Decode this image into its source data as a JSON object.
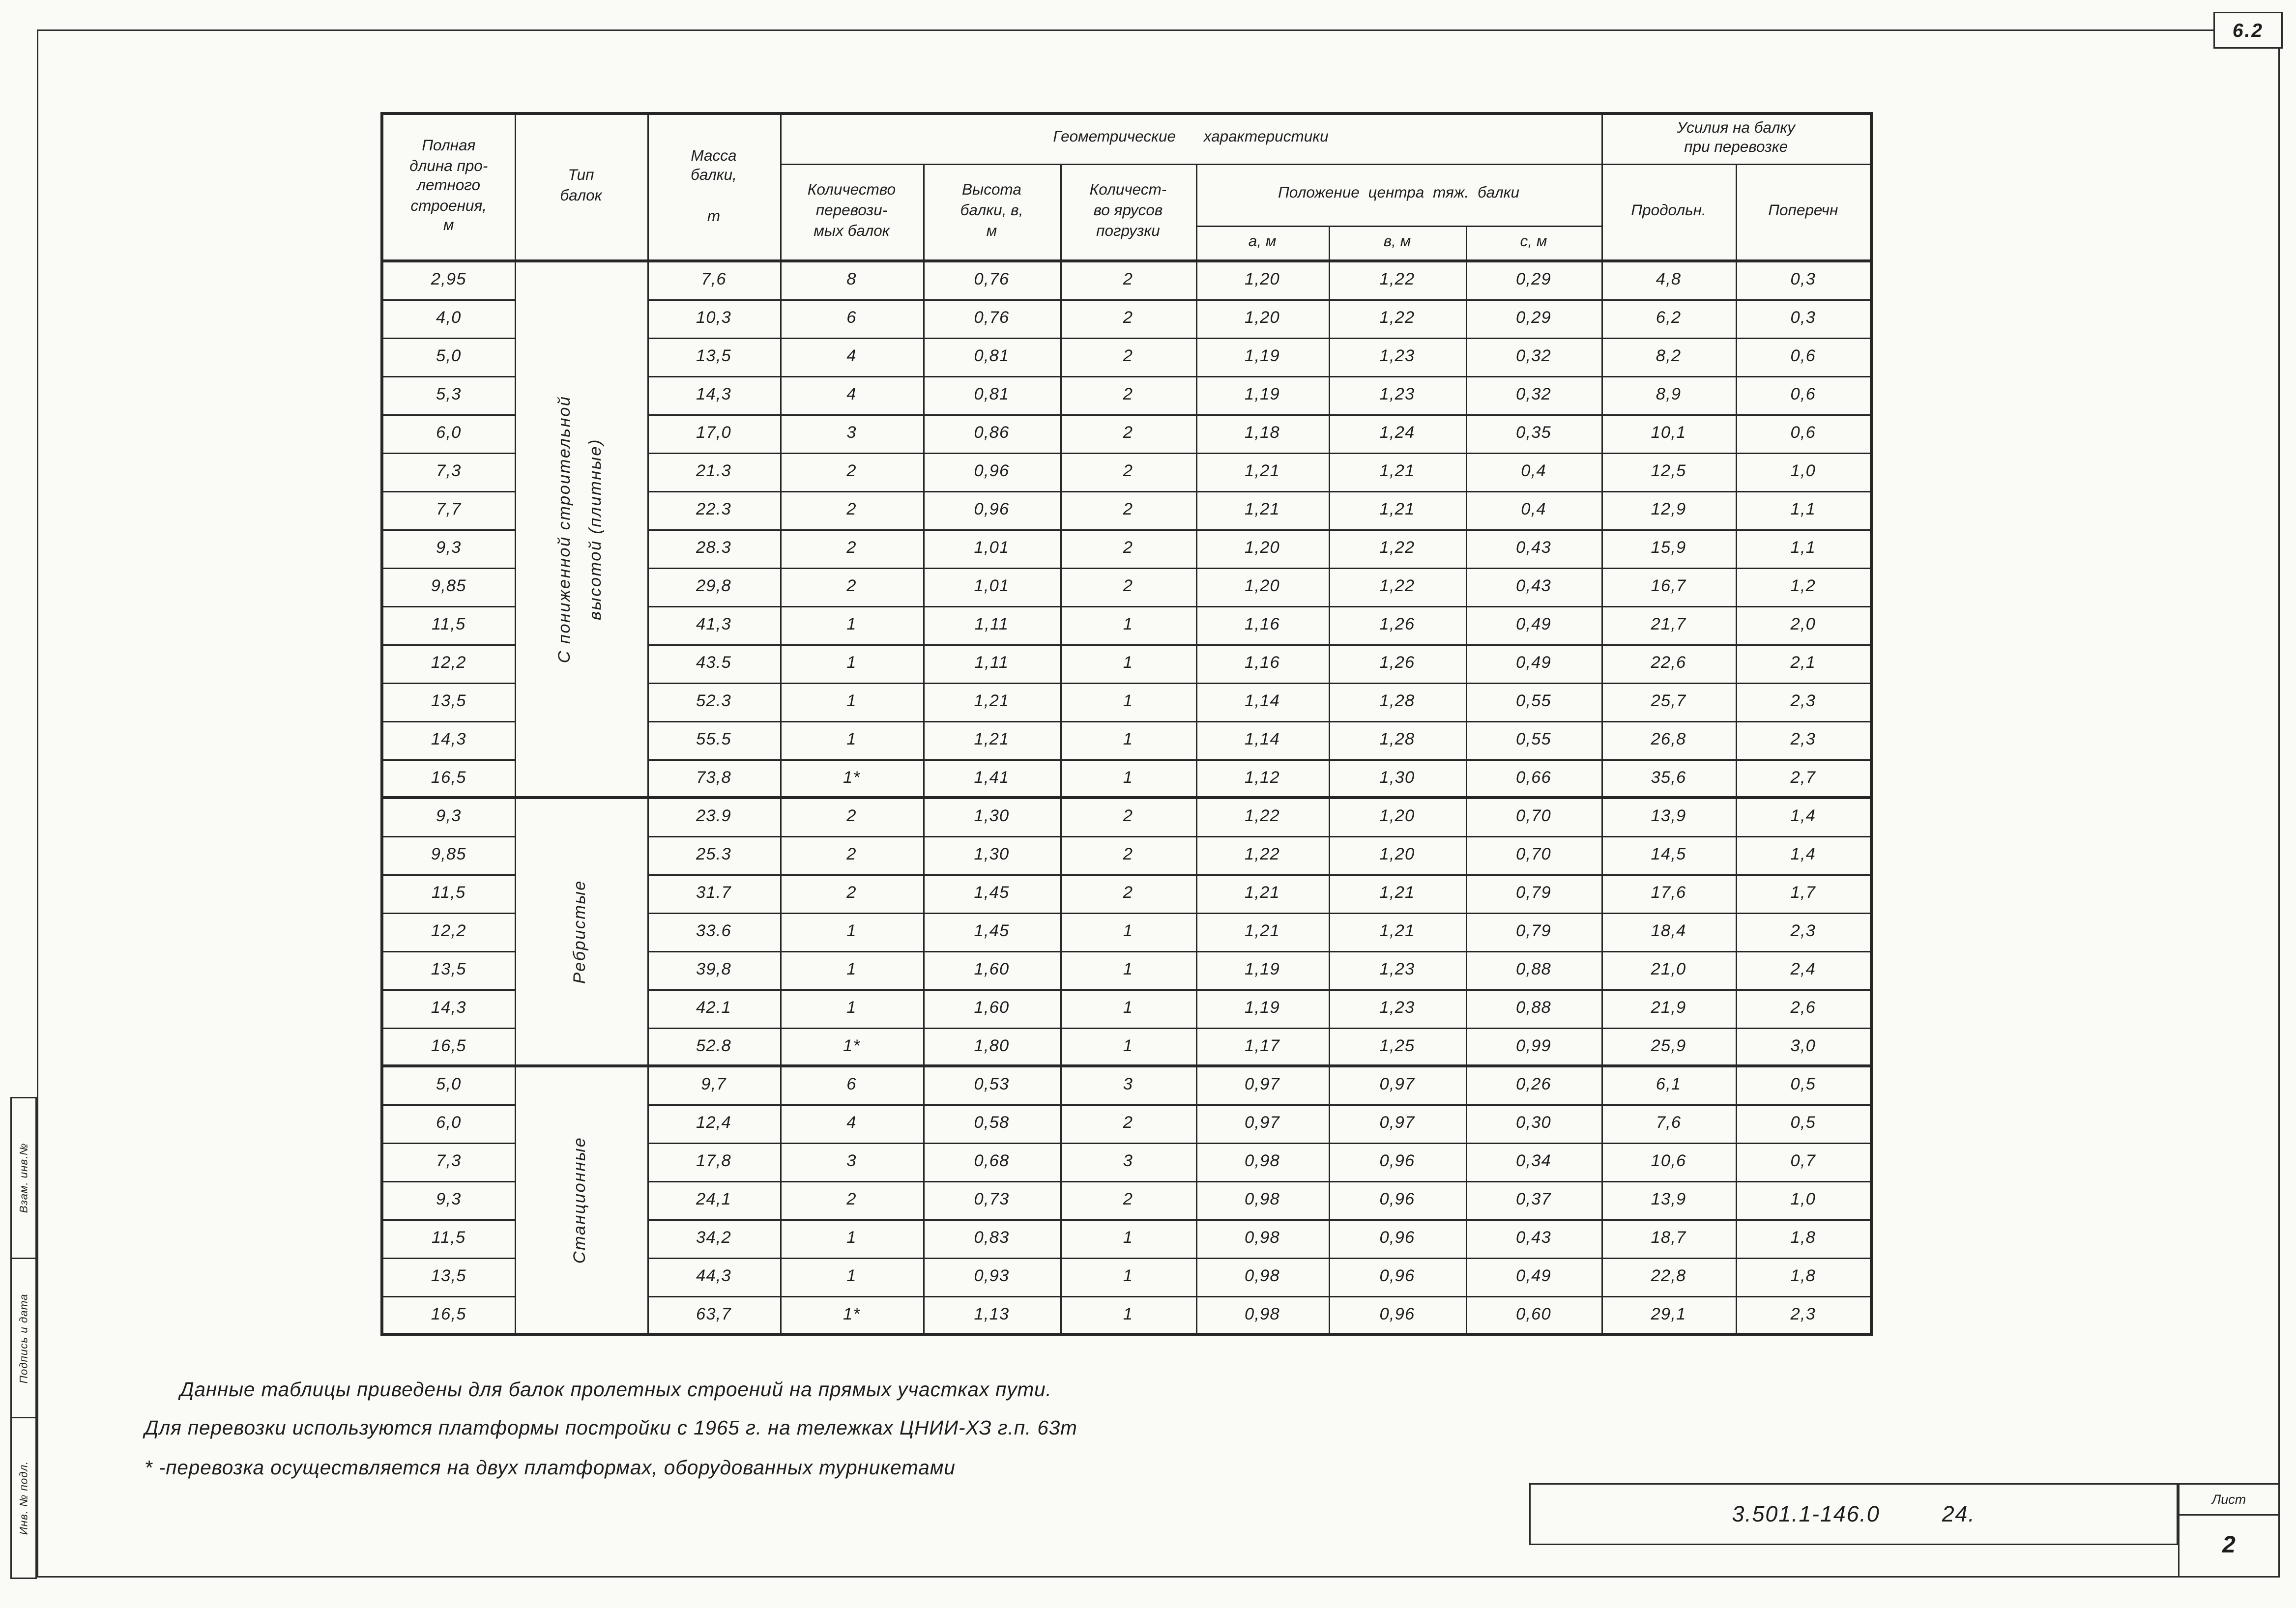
{
  "page": {
    "corner_label": "6.2"
  },
  "table": {
    "headers": {
      "full_length": "Полная\nдлина про-\nлетного\nстроения,\nм",
      "beam_type": "Тип\nбалок",
      "mass": "Масса\nбалки,\n\nт",
      "geometric": "Геометрические характеристики",
      "count": "Количество\nперевози-\nмых балок",
      "height": "Высота\nбалки, в,\nм",
      "tiers": "Количест-\nво ярусов\nпогрузки",
      "center": "Положение центра тяж. балки",
      "a": "а, м",
      "v": "в, м",
      "c": "с, м",
      "forces": "Усилия на балку\nпри перевозке",
      "longitudinal": "Продольн.",
      "transverse": "Поперечн"
    },
    "groups": [
      {
        "type": "С пониженной строительной\nвысотой (плитные)",
        "rows": [
          [
            "2,95",
            "7,6",
            "8",
            "0,76",
            "2",
            "1,20",
            "1,22",
            "0,29",
            "4,8",
            "0,3"
          ],
          [
            "4,0",
            "10,3",
            "6",
            "0,76",
            "2",
            "1,20",
            "1,22",
            "0,29",
            "6,2",
            "0,3"
          ],
          [
            "5,0",
            "13,5",
            "4",
            "0,81",
            "2",
            "1,19",
            "1,23",
            "0,32",
            "8,2",
            "0,6"
          ],
          [
            "5,3",
            "14,3",
            "4",
            "0,81",
            "2",
            "1,19",
            "1,23",
            "0,32",
            "8,9",
            "0,6"
          ],
          [
            "6,0",
            "17,0",
            "3",
            "0,86",
            "2",
            "1,18",
            "1,24",
            "0,35",
            "10,1",
            "0,6"
          ],
          [
            "7,3",
            "21.3",
            "2",
            "0,96",
            "2",
            "1,21",
            "1,21",
            "0,4",
            "12,5",
            "1,0"
          ],
          [
            "7,7",
            "22.3",
            "2",
            "0,96",
            "2",
            "1,21",
            "1,21",
            "0,4",
            "12,9",
            "1,1"
          ],
          [
            "9,3",
            "28.3",
            "2",
            "1,01",
            "2",
            "1,20",
            "1,22",
            "0,43",
            "15,9",
            "1,1"
          ],
          [
            "9,85",
            "29,8",
            "2",
            "1,01",
            "2",
            "1,20",
            "1,22",
            "0,43",
            "16,7",
            "1,2"
          ],
          [
            "11,5",
            "41,3",
            "1",
            "1,11",
            "1",
            "1,16",
            "1,26",
            "0,49",
            "21,7",
            "2,0"
          ],
          [
            "12,2",
            "43.5",
            "1",
            "1,11",
            "1",
            "1,16",
            "1,26",
            "0,49",
            "22,6",
            "2,1"
          ],
          [
            "13,5",
            "52.3",
            "1",
            "1,21",
            "1",
            "1,14",
            "1,28",
            "0,55",
            "25,7",
            "2,3"
          ],
          [
            "14,3",
            "55.5",
            "1",
            "1,21",
            "1",
            "1,14",
            "1,28",
            "0,55",
            "26,8",
            "2,3"
          ],
          [
            "16,5",
            "73,8",
            "1*",
            "1,41",
            "1",
            "1,12",
            "1,30",
            "0,66",
            "35,6",
            "2,7"
          ]
        ]
      },
      {
        "type": "Ребристые",
        "rows": [
          [
            "9,3",
            "23.9",
            "2",
            "1,30",
            "2",
            "1,22",
            "1,20",
            "0,70",
            "13,9",
            "1,4"
          ],
          [
            "9,85",
            "25.3",
            "2",
            "1,30",
            "2",
            "1,22",
            "1,20",
            "0,70",
            "14,5",
            "1,4"
          ],
          [
            "11,5",
            "31.7",
            "2",
            "1,45",
            "2",
            "1,21",
            "1,21",
            "0,79",
            "17,6",
            "1,7"
          ],
          [
            "12,2",
            "33.6",
            "1",
            "1,45",
            "1",
            "1,21",
            "1,21",
            "0,79",
            "18,4",
            "2,3"
          ],
          [
            "13,5",
            "39,8",
            "1",
            "1,60",
            "1",
            "1,19",
            "1,23",
            "0,88",
            "21,0",
            "2,4"
          ],
          [
            "14,3",
            "42.1",
            "1",
            "1,60",
            "1",
            "1,19",
            "1,23",
            "0,88",
            "21,9",
            "2,6"
          ],
          [
            "16,5",
            "52.8",
            "1*",
            "1,80",
            "1",
            "1,17",
            "1,25",
            "0,99",
            "25,9",
            "3,0"
          ]
        ]
      },
      {
        "type": "Станционные",
        "rows": [
          [
            "5,0",
            "9,7",
            "6",
            "0,53",
            "3",
            "0,97",
            "0,97",
            "0,26",
            "6,1",
            "0,5"
          ],
          [
            "6,0",
            "12,4",
            "4",
            "0,58",
            "2",
            "0,97",
            "0,97",
            "0,30",
            "7,6",
            "0,5"
          ],
          [
            "7,3",
            "17,8",
            "3",
            "0,68",
            "3",
            "0,98",
            "0,96",
            "0,34",
            "10,6",
            "0,7"
          ],
          [
            "9,3",
            "24,1",
            "2",
            "0,73",
            "2",
            "0,98",
            "0,96",
            "0,37",
            "13,9",
            "1,0"
          ],
          [
            "11,5",
            "34,2",
            "1",
            "0,83",
            "1",
            "0,98",
            "0,96",
            "0,43",
            "18,7",
            "1,8"
          ],
          [
            "13,5",
            "44,3",
            "1",
            "0,93",
            "1",
            "0,98",
            "0,96",
            "0,49",
            "22,8",
            "1,8"
          ],
          [
            "16,5",
            "63,7",
            "1*",
            "1,13",
            "1",
            "0,98",
            "0,96",
            "0,60",
            "29,1",
            "2,3"
          ]
        ]
      }
    ]
  },
  "notes": [
    "Данные таблицы приведены для балок пролетных строений на прямых участках пути.",
    "Для перевозки используются платформы постройки с 1965 г. на тележках ЦНИИ-ХЗ г.п. 63т",
    "* -перевозка осуществляется на двух платформах, оборудованных турникетами"
  ],
  "title_block": {
    "code": "3.501.1-146.0",
    "page_ref": "24.",
    "sheet_label": "Лист",
    "sheet_number": "2"
  },
  "stamp": {
    "labels": [
      "Взам. инв.№",
      "Подпись и дата",
      "Инв. № подл."
    ]
  }
}
